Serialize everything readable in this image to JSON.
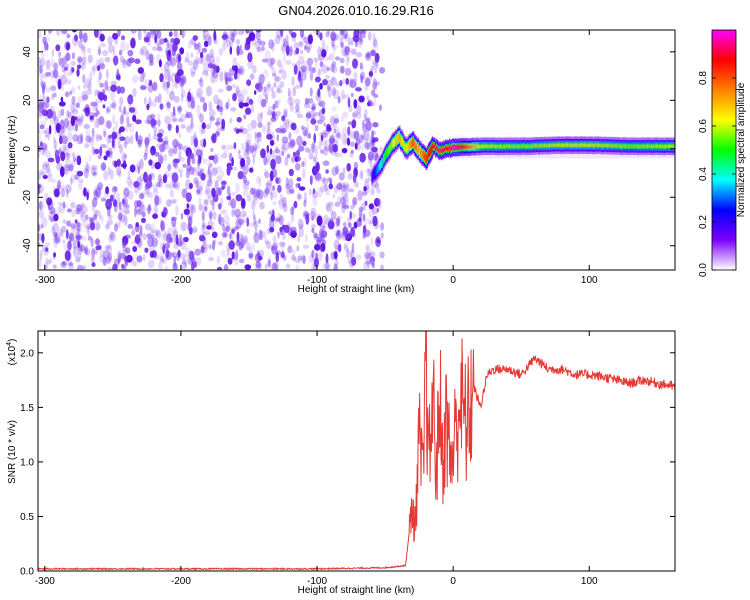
{
  "chart_data": [
    {
      "type": "heatmap",
      "title": "GN04.2026.010.16.29.R16",
      "xlabel": "Height of straight line (km)",
      "ylabel": "Frequency (Hz)",
      "xlim": [
        -305,
        163
      ],
      "ylim": [
        -50,
        49
      ],
      "xticks": [
        -300,
        -200,
        -100,
        0,
        100
      ],
      "xtick_labels": [
        "-300",
        "-200",
        "-100",
        "0",
        "100"
      ],
      "yticks": [
        -40,
        -20,
        0,
        20,
        40
      ],
      "ytick_labels": [
        "-40",
        "-20",
        "0",
        "20",
        "40"
      ],
      "noise_region_x": [
        -305,
        -52
      ],
      "ridge": {
        "x": [
          -60,
          -55,
          -50,
          -45,
          -40,
          -35,
          -30,
          -25,
          -20,
          -15,
          -10,
          -5,
          0,
          20,
          50,
          80,
          100,
          130,
          163
        ],
        "frequency": [
          -12,
          -8,
          -3,
          2,
          5,
          0,
          3,
          -1,
          -4,
          1,
          -1,
          0,
          0.5,
          1,
          1,
          1.5,
          1.5,
          1,
          1
        ],
        "peak_amplitude": [
          0.2,
          0.35,
          0.5,
          0.6,
          0.7,
          0.6,
          0.8,
          0.7,
          0.85,
          0.9,
          0.95,
          0.9,
          1.0,
          0.6,
          0.55,
          0.6,
          0.6,
          0.55,
          0.6
        ]
      },
      "colorbar": {
        "label": "Normalized spectral amplitude",
        "range": [
          0,
          1
        ],
        "ticks": [
          0.0,
          0.2,
          0.4,
          0.6,
          0.8
        ],
        "tick_labels": [
          "0.0",
          "0.2",
          "0.4",
          "0.6",
          "0.8"
        ],
        "colors": [
          "#ffffff",
          "#7c00ff",
          "#0000ff",
          "#00ffff",
          "#00ff00",
          "#ffff00",
          "#ff8000",
          "#ff0000",
          "#ff00ff"
        ]
      }
    },
    {
      "type": "line",
      "xlabel": "Height of straight line (km)",
      "ylabel": "SNR (10 * v/v)",
      "y_multiplier": "(x10",
      "y_multiplier_exp": "4",
      "y_multiplier_close": ")",
      "xlim": [
        -305,
        163
      ],
      "ylim": [
        0,
        2.2
      ],
      "xticks": [
        -300,
        -200,
        -100,
        0,
        100
      ],
      "xtick_labels": [
        "-300",
        "-200",
        "-100",
        "0",
        "100"
      ],
      "yticks": [
        0,
        0.5,
        1.0,
        1.5,
        2.0
      ],
      "ytick_labels": [
        "0.0",
        "0.5",
        "1.0",
        "1.5",
        "2.0"
      ],
      "color": "#e53935",
      "series": [
        {
          "x": [
            -305,
            -250,
            -200,
            -150,
            -100,
            -50,
            -35,
            -30,
            -28,
            -25,
            -22,
            -20,
            -18,
            -15,
            -12,
            -10,
            -8,
            -5,
            -2,
            0,
            5,
            10,
            15,
            20,
            25,
            30,
            40,
            50,
            60,
            70,
            80,
            90,
            100,
            110,
            120,
            130,
            140,
            150,
            160,
            163
          ],
          "y": [
            0.02,
            0.02,
            0.02,
            0.02,
            0.02,
            0.03,
            0.05,
            0.6,
            0.4,
            1.2,
            0.8,
            2.1,
            0.9,
            1.6,
            0.9,
            1.7,
            1.0,
            1.4,
            1.0,
            1.1,
            1.6,
            1.3,
            1.7,
            1.5,
            1.8,
            1.85,
            1.85,
            1.8,
            1.95,
            1.85,
            1.85,
            1.8,
            1.8,
            1.78,
            1.75,
            1.72,
            1.75,
            1.72,
            1.7,
            1.68
          ]
        }
      ]
    }
  ]
}
